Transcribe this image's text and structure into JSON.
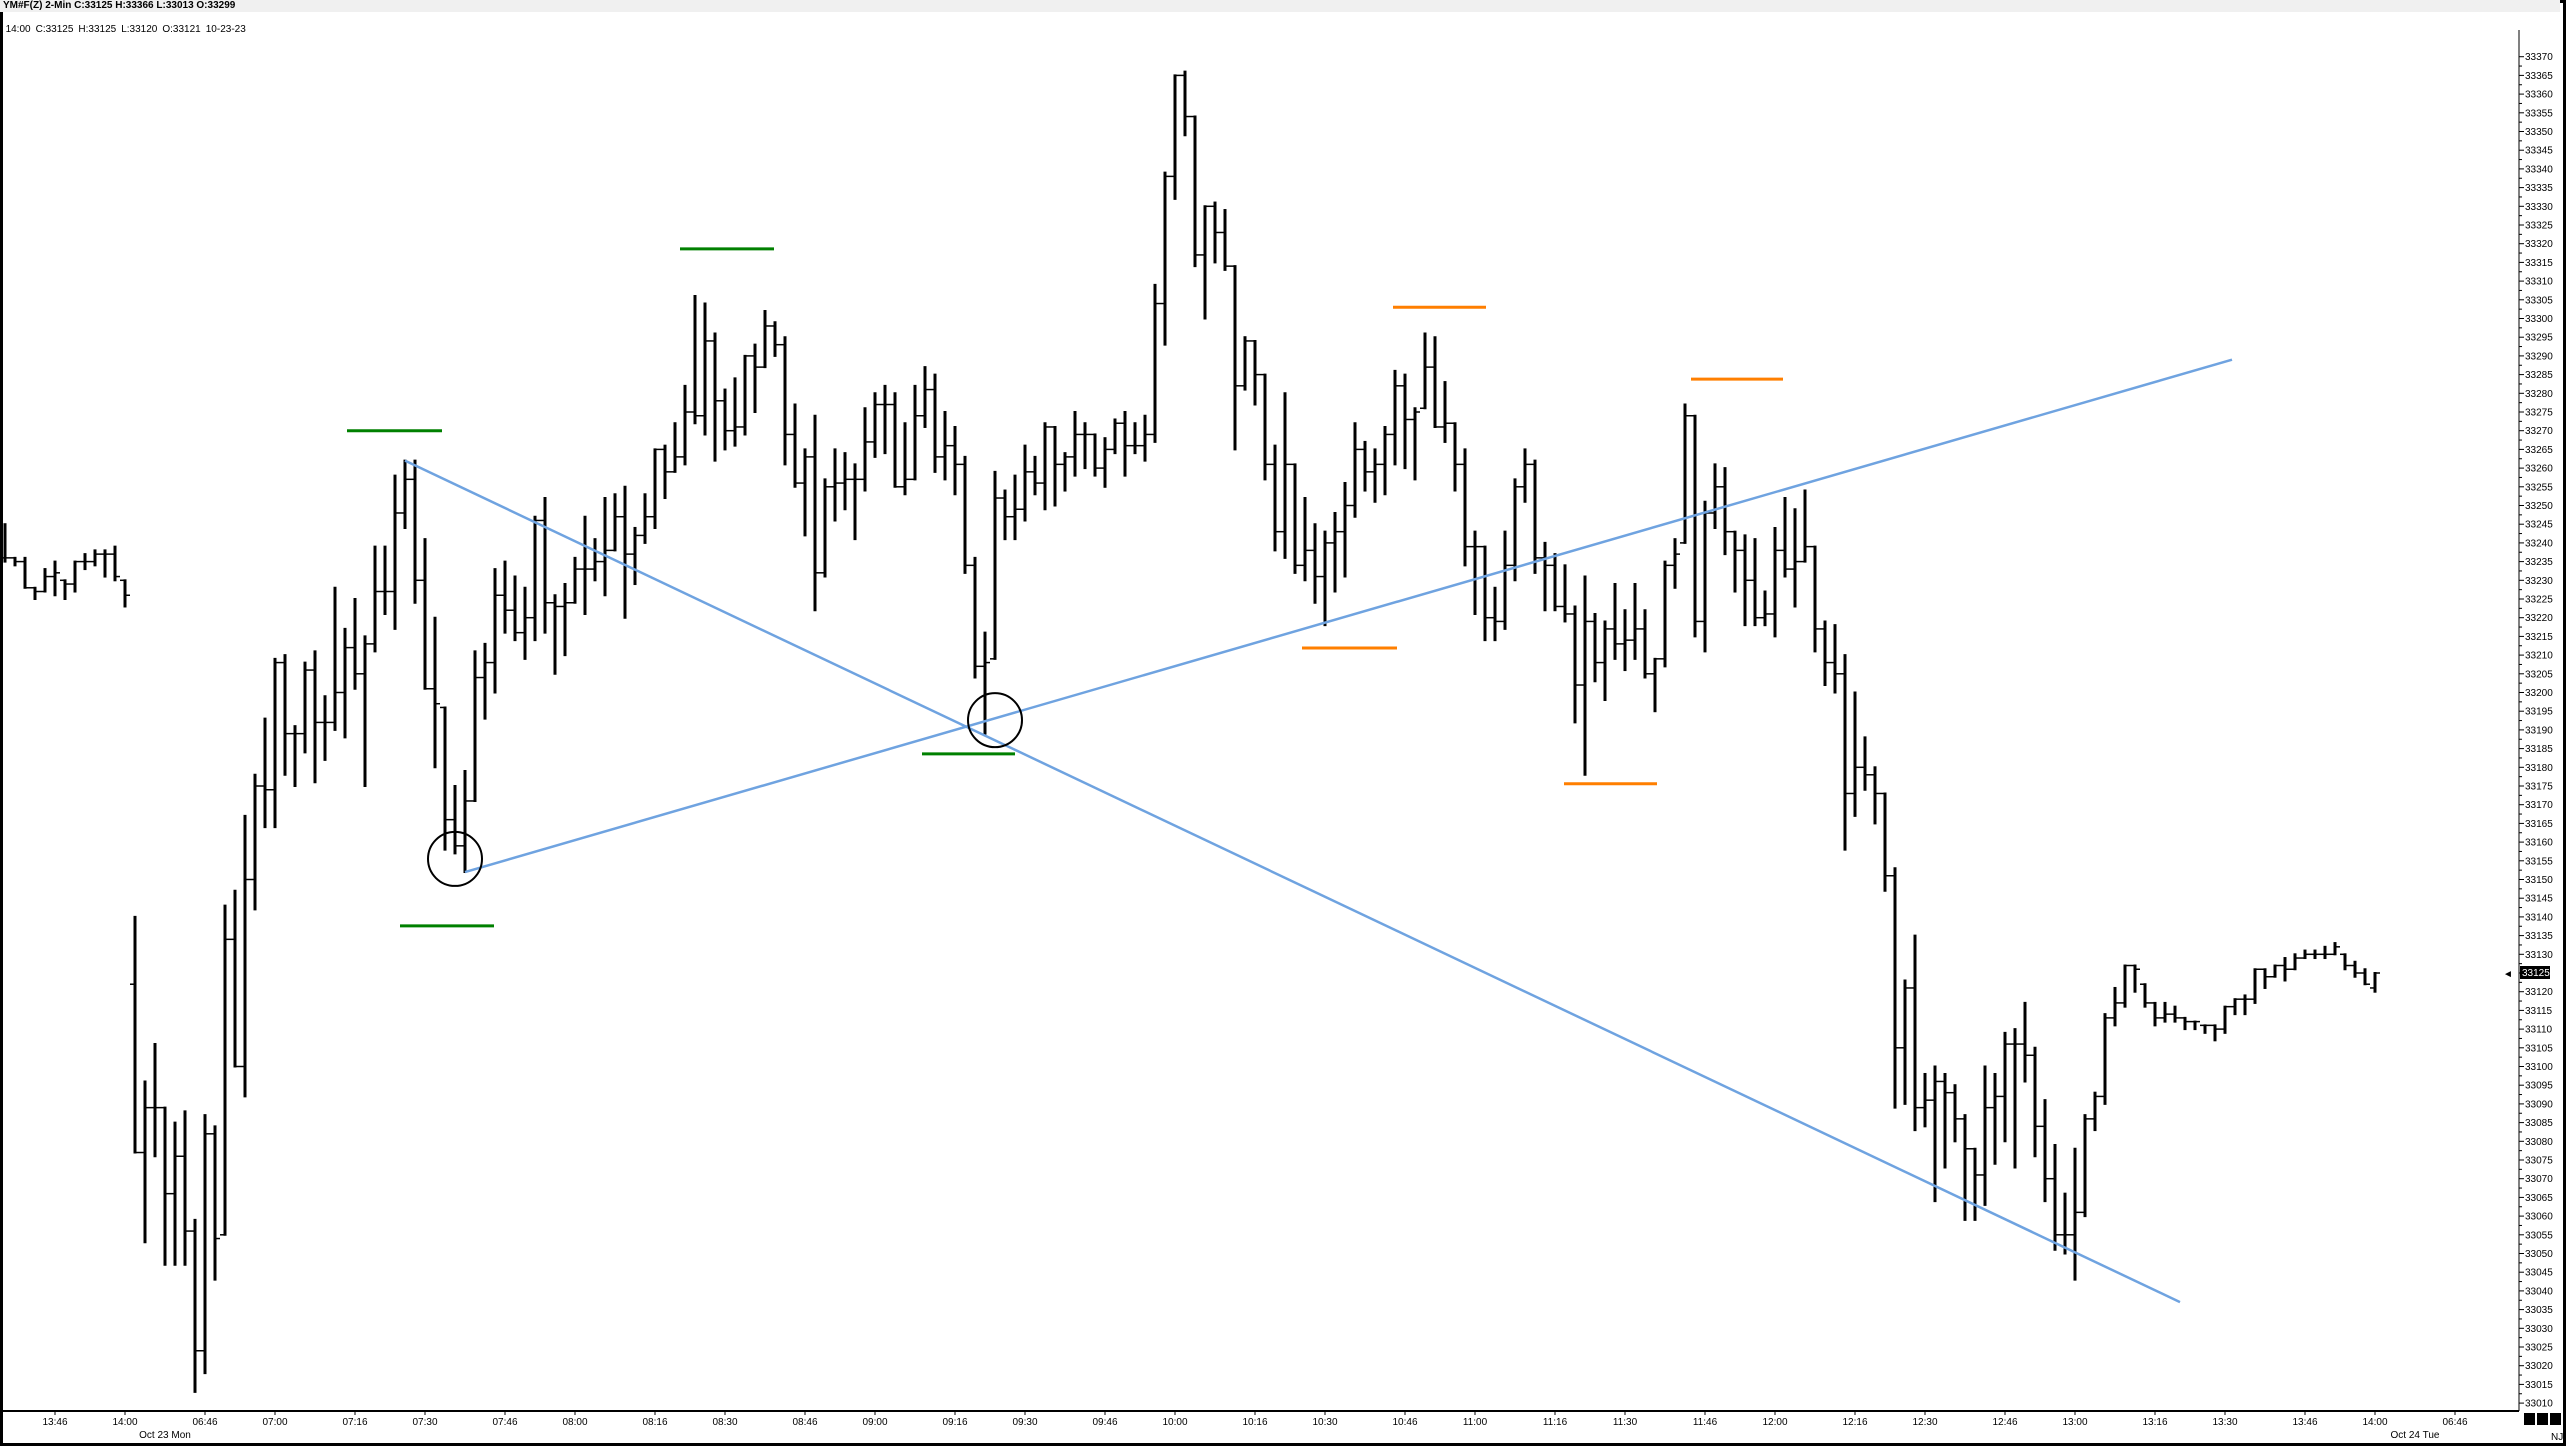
{
  "header": {
    "title": "YM#F(Z) 2-Min  C:33125  H:33366  L:33013  O:33299",
    "bar_info": [
      "14:00",
      "C:33125",
      "H:33125",
      "L:33120",
      "O:33121",
      "10-23-23"
    ]
  },
  "price_axis": {
    "last_price": "33125",
    "footer": "NJ"
  },
  "colors": {
    "bars": "#000000",
    "trendline": "#6fa3e0",
    "support": "#008000",
    "resistance": "#ff7f00",
    "circle": "#000000",
    "last_price_bg": "#000000"
  },
  "chart_data": {
    "type": "ohlc",
    "symbol": "YM#F(Z)",
    "interval": "2-Min",
    "ylim": [
      33010,
      33370
    ],
    "y_tick_step": 5,
    "bar_format": "[high, low, close, open?] (open defaults to previous close)",
    "bars": [
      [
        33245,
        33235,
        33236
      ],
      [
        33236,
        33234,
        33235
      ],
      [
        33236,
        33228,
        33228
      ],
      [
        33228,
        33225,
        33227
      ],
      [
        33233,
        33227,
        33231
      ],
      [
        33235,
        33226,
        33232
      ],
      [
        33230,
        33225,
        33229
      ],
      [
        33235,
        33227,
        33235
      ],
      [
        33237,
        33233,
        33235
      ],
      [
        33238,
        33234,
        33237
      ],
      [
        33238,
        33231,
        33237
      ],
      [
        33239,
        33230,
        33231
      ],
      [
        33230,
        33223,
        33226
      ],
      [
        33140,
        33077,
        33077,
        33122
      ],
      [
        33096,
        33053,
        33089
      ],
      [
        33106,
        33076,
        33089
      ],
      [
        33089,
        33047,
        33066
      ],
      [
        33085,
        33047,
        33076
      ],
      [
        33088,
        33047,
        33056
      ],
      [
        33059,
        33013,
        33024
      ],
      [
        33087,
        33018,
        33082
      ],
      [
        33084,
        33043,
        33054
      ],
      [
        33143,
        33055,
        33134
      ],
      [
        33147,
        33100,
        33100
      ],
      [
        33167,
        33092,
        33150
      ],
      [
        33178,
        33142,
        33175
      ],
      [
        33193,
        33164,
        33174
      ],
      [
        33209,
        33164,
        33208
      ],
      [
        33210,
        33178,
        33189
      ],
      [
        33191,
        33175,
        33189
      ],
      [
        33208,
        33184,
        33206
      ],
      [
        33211,
        33176,
        33192
      ],
      [
        33199,
        33182,
        33192
      ],
      [
        33228,
        33190,
        33200
      ],
      [
        33217,
        33188,
        33212
      ],
      [
        33225,
        33201,
        33205
      ],
      [
        33215,
        33175,
        33213
      ],
      [
        33239,
        33211,
        33227
      ],
      [
        33239,
        33221,
        33227
      ],
      [
        33258,
        33217,
        33248
      ],
      [
        33262,
        33244,
        33257
      ],
      [
        33262,
        33224,
        33230
      ],
      [
        33241,
        33201,
        33201
      ],
      [
        33220,
        33180,
        33197
      ],
      [
        33196,
        33158,
        33166
      ],
      [
        33175,
        33157,
        33159
      ],
      [
        33179,
        33152,
        33171
      ],
      [
        33211,
        33171,
        33204
      ],
      [
        33213,
        33193,
        33208
      ],
      [
        33233,
        33200,
        33226
      ],
      [
        33235,
        33216,
        33222
      ],
      [
        33231,
        33214,
        33216
      ],
      [
        33228,
        33209,
        33220
      ],
      [
        33247,
        33214,
        33246
      ],
      [
        33252,
        33216,
        33224
      ],
      [
        33226,
        33205,
        33223
      ],
      [
        33229,
        33210,
        33224
      ],
      [
        33236,
        33224,
        33233
      ],
      [
        33247,
        33221,
        33233
      ],
      [
        33241,
        33230,
        33235
      ],
      [
        33252,
        33226,
        33238
      ],
      [
        33253,
        33238,
        33247
      ],
      [
        33255,
        33220,
        33237
      ],
      [
        33244,
        33229,
        33242
      ],
      [
        33253,
        33240,
        33247
      ],
      [
        33265,
        33244,
        33265
      ],
      [
        33266,
        33252,
        33259
      ],
      [
        33272,
        33259,
        33263
      ],
      [
        33282,
        33261,
        33275
      ],
      [
        33306,
        33272,
        33274
      ],
      [
        33304,
        33269,
        33294
      ],
      [
        33296,
        33262,
        33278
      ],
      [
        33281,
        33265,
        33270
      ],
      [
        33284,
        33266,
        33271
      ],
      [
        33290,
        33269,
        33290
      ],
      [
        33293,
        33275,
        33287
      ],
      [
        33302,
        33287,
        33298
      ],
      [
        33299,
        33290,
        33293
      ],
      [
        33295,
        33261,
        33269
      ],
      [
        33277,
        33255,
        33256
      ],
      [
        33265,
        33242,
        33263
      ],
      [
        33274,
        33222,
        33232
      ],
      [
        33257,
        33231,
        33255
      ],
      [
        33265,
        33246,
        33256
      ],
      [
        33264,
        33249,
        33257
      ],
      [
        33261,
        33241,
        33257
      ],
      [
        33276,
        33254,
        33267
      ],
      [
        33280,
        33263,
        33277
      ],
      [
        33282,
        33264,
        33277
      ],
      [
        33280,
        33255,
        33255
      ],
      [
        33272,
        33253,
        33257
      ],
      [
        33282,
        33257,
        33274
      ],
      [
        33287,
        33271,
        33281
      ],
      [
        33285,
        33259,
        33263
      ],
      [
        33275,
        33257,
        33266
      ],
      [
        33271,
        33253,
        33261
      ],
      [
        33263,
        33232,
        33234
      ],
      [
        33236,
        33204,
        33207
      ],
      [
        33216,
        33189,
        33208
      ],
      [
        33259,
        33209,
        33252
      ],
      [
        33254,
        33241,
        33247
      ],
      [
        33258,
        33241,
        33249
      ],
      [
        33266,
        33246,
        33259
      ],
      [
        33263,
        33253,
        33256
      ],
      [
        33272,
        33249,
        33271
      ],
      [
        33271,
        33250,
        33261
      ],
      [
        33264,
        33254,
        33263
      ],
      [
        33275,
        33258,
        33269
      ],
      [
        33272,
        33260,
        33269
      ],
      [
        33269,
        33258,
        33260
      ],
      [
        33268,
        33255,
        33265
      ],
      [
        33273,
        33264,
        33272
      ],
      [
        33275,
        33258,
        33266
      ],
      [
        33272,
        33264,
        33266
      ],
      [
        33274,
        33262,
        33269
      ],
      [
        33309,
        33267,
        33304
      ],
      [
        33339,
        33293,
        33338
      ],
      [
        33365,
        33332,
        33365
      ],
      [
        33366,
        33349,
        33354
      ],
      [
        33354,
        33314,
        33317
      ],
      [
        33330,
        33300,
        33330
      ],
      [
        33331,
        33315,
        33323
      ],
      [
        33329,
        33313,
        33314
      ],
      [
        33314,
        33265,
        33282
      ],
      [
        33295,
        33281,
        33294
      ],
      [
        33294,
        33277,
        33285
      ],
      [
        33285,
        33257,
        33261
      ],
      [
        33266,
        33238,
        33243
      ],
      [
        33280,
        33236,
        33261
      ],
      [
        33261,
        33232,
        33234
      ],
      [
        33252,
        33230,
        33238
      ],
      [
        33245,
        33224,
        33231
      ],
      [
        33243,
        33218,
        33240
      ],
      [
        33248,
        33227,
        33243
      ],
      [
        33256,
        33231,
        33250
      ],
      [
        33272,
        33247,
        33265
      ],
      [
        33267,
        33254,
        33259
      ],
      [
        33265,
        33251,
        33261
      ],
      [
        33271,
        33253,
        33269
      ],
      [
        33286,
        33261,
        33282
      ],
      [
        33285,
        33260,
        33273
      ],
      [
        33276,
        33257,
        33275
      ],
      [
        33296,
        33276,
        33287
      ],
      [
        33295,
        33271,
        33271
      ],
      [
        33283,
        33267,
        33272
      ],
      [
        33272,
        33254,
        33261
      ],
      [
        33265,
        33234,
        33239
      ],
      [
        33243,
        33221,
        33239
      ],
      [
        33239,
        33214,
        33220
      ],
      [
        33228,
        33214,
        33219
      ],
      [
        33243,
        33217,
        33234
      ],
      [
        33257,
        33230,
        33255
      ],
      [
        33265,
        33251,
        33261
      ],
      [
        33262,
        33232,
        33236
      ],
      [
        33240,
        33222,
        33234
      ],
      [
        33237,
        33222,
        33223
      ],
      [
        33234,
        33219,
        33221
      ],
      [
        33223,
        33192,
        33202
      ],
      [
        33231,
        33178,
        33219
      ],
      [
        33221,
        33203,
        33208
      ],
      [
        33219,
        33198,
        33217
      ],
      [
        33229,
        33209,
        33213
      ],
      [
        33222,
        33206,
        33214
      ],
      [
        33229,
        33209,
        33217
      ],
      [
        33222,
        33204,
        33205
      ],
      [
        33209,
        33195,
        33209
      ],
      [
        33235,
        33207,
        33234
      ],
      [
        33241,
        33228,
        33237
      ],
      [
        33277,
        33240,
        33274
      ],
      [
        33274,
        33215,
        33219
      ],
      [
        33251,
        33211,
        33248
      ],
      [
        33261,
        33244,
        33255
      ],
      [
        33260,
        33237,
        33243
      ],
      [
        33243,
        33227,
        33238
      ],
      [
        33242,
        33218,
        33230
      ],
      [
        33241,
        33218,
        33220
      ],
      [
        33227,
        33218,
        33221
      ],
      [
        33244,
        33215,
        33238
      ],
      [
        33252,
        33231,
        33233
      ],
      [
        33249,
        33223,
        33235
      ],
      [
        33254,
        33235,
        33239
      ],
      [
        33239,
        33211,
        33217
      ],
      [
        33219,
        33202,
        33208
      ],
      [
        33218,
        33200,
        33205
      ],
      [
        33210,
        33158,
        33173
      ],
      [
        33200,
        33167,
        33180
      ],
      [
        33188,
        33174,
        33178
      ],
      [
        33180,
        33165,
        33173
      ],
      [
        33173,
        33147,
        33151
      ],
      [
        33153,
        33089,
        33105
      ],
      [
        33123,
        33090,
        33121
      ],
      [
        33135,
        33083,
        33089
      ],
      [
        33098,
        33084,
        33091
      ],
      [
        33100,
        33064,
        33096
      ],
      [
        33098,
        33073,
        33093
      ],
      [
        33095,
        33080,
        33086
      ],
      [
        33087,
        33059,
        33078
      ],
      [
        33078,
        33059,
        33071
      ],
      [
        33100,
        33063,
        33089
      ],
      [
        33098,
        33074,
        33092
      ],
      [
        33109,
        33080,
        33106
      ],
      [
        33110,
        33073,
        33106
      ],
      [
        33117,
        33096,
        33103
      ],
      [
        33105,
        33076,
        33084
      ],
      [
        33091,
        33064,
        33070
      ],
      [
        33079,
        33051,
        33055
      ],
      [
        33066,
        33050,
        33055
      ],
      [
        33078,
        33043,
        33061
      ],
      [
        33087,
        33060,
        33086
      ],
      [
        33093,
        33083,
        33092
      ],
      [
        33114,
        33090,
        33113
      ],
      [
        33121,
        33111,
        33117
      ],
      [
        33127,
        33116,
        33127
      ],
      [
        33127,
        33120,
        33126
      ],
      [
        33122,
        33116,
        33117
      ],
      [
        33117,
        33111,
        33113
      ],
      [
        33117,
        33112,
        33114
      ],
      [
        33116,
        33112,
        33113
      ],
      [
        33113,
        33110,
        33112
      ],
      [
        33112,
        33110,
        33112
      ],
      [
        33111,
        33109,
        33111
      ],
      [
        33111,
        33107,
        33110
      ],
      [
        33116,
        33109,
        33116
      ],
      [
        33118,
        33114,
        33118
      ],
      [
        33119,
        33114,
        33118
      ],
      [
        33126,
        33117,
        33126
      ],
      [
        33126,
        33121,
        33124
      ],
      [
        33127,
        33124,
        33127
      ],
      [
        33129,
        33123,
        33126
      ],
      [
        33130,
        33126,
        33129
      ],
      [
        33131,
        33129,
        33130
      ],
      [
        33131,
        33129,
        33130
      ],
      [
        33132,
        33129,
        33130
      ],
      [
        33133,
        33130,
        33132
      ],
      [
        33130,
        33126,
        33127
      ],
      [
        33128,
        33124,
        33125
      ],
      [
        33126,
        33122,
        33122
      ],
      [
        33125,
        33120,
        33125,
        33121
      ]
    ],
    "x_ticks": [
      {
        "label": "13:46",
        "bar": 5
      },
      {
        "label": "14:00",
        "bar": 12
      },
      {
        "label": "06:46",
        "bar": 20
      },
      {
        "label": "07:00",
        "bar": 27
      },
      {
        "label": "07:16",
        "bar": 35
      },
      {
        "label": "07:30",
        "bar": 42
      },
      {
        "label": "07:46",
        "bar": 50
      },
      {
        "label": "08:00",
        "bar": 57
      },
      {
        "label": "08:16",
        "bar": 65
      },
      {
        "label": "08:30",
        "bar": 72
      },
      {
        "label": "08:46",
        "bar": 80
      },
      {
        "label": "09:00",
        "bar": 87
      },
      {
        "label": "09:16",
        "bar": 95
      },
      {
        "label": "09:30",
        "bar": 102
      },
      {
        "label": "09:46",
        "bar": 110
      },
      {
        "label": "10:00",
        "bar": 117
      },
      {
        "label": "10:16",
        "bar": 125
      },
      {
        "label": "10:30",
        "bar": 132
      },
      {
        "label": "10:46",
        "bar": 140
      },
      {
        "label": "11:00",
        "bar": 147
      },
      {
        "label": "11:16",
        "bar": 155
      },
      {
        "label": "11:30",
        "bar": 162
      },
      {
        "label": "11:46",
        "bar": 170
      },
      {
        "label": "12:00",
        "bar": 177
      },
      {
        "label": "12:16",
        "bar": 185
      },
      {
        "label": "12:30",
        "bar": 192
      },
      {
        "label": "12:46",
        "bar": 200
      },
      {
        "label": "13:00",
        "bar": 207
      },
      {
        "label": "13:16",
        "bar": 215
      },
      {
        "label": "13:30",
        "bar": 222
      },
      {
        "label": "13:46",
        "bar": 230
      },
      {
        "label": "14:00",
        "bar": 237
      },
      {
        "label": "06:46",
        "bar": 245
      }
    ],
    "date_labels": [
      {
        "label": "Oct 23 Mon",
        "bar": 16
      },
      {
        "label": "Oct 24 Tue",
        "bar": 241
      }
    ],
    "drawings": {
      "trendlines": [
        {
          "from": [
            40,
            33262
          ],
          "to": [
            217.5,
            33037
          ]
        },
        {
          "from": [
            46,
            33152
          ],
          "to": [
            222.7,
            33289
          ]
        }
      ],
      "circles": [
        {
          "bar": 45,
          "price": 33155.5
        },
        {
          "bar": 99,
          "price": 33192.6
        }
      ],
      "support_levels": [
        {
          "from_bar": 34.2,
          "to_bar": 43.7,
          "price": 33270
        },
        {
          "from_bar": 39.5,
          "to_bar": 48.9,
          "price": 33137.6
        },
        {
          "from_bar": 67.5,
          "to_bar": 76.9,
          "price": 33318.6
        },
        {
          "from_bar": 91.7,
          "to_bar": 101,
          "price": 33183.6
        }
      ],
      "resistance_levels": [
        {
          "from_bar": 129.7,
          "to_bar": 139.2,
          "price": 33211.9
        },
        {
          "from_bar": 138.8,
          "to_bar": 148.1,
          "price": 33303
        },
        {
          "from_bar": 155.9,
          "to_bar": 165.2,
          "price": 33175.6
        },
        {
          "from_bar": 168.6,
          "to_bar": 177.8,
          "price": 33283.8
        }
      ]
    }
  }
}
